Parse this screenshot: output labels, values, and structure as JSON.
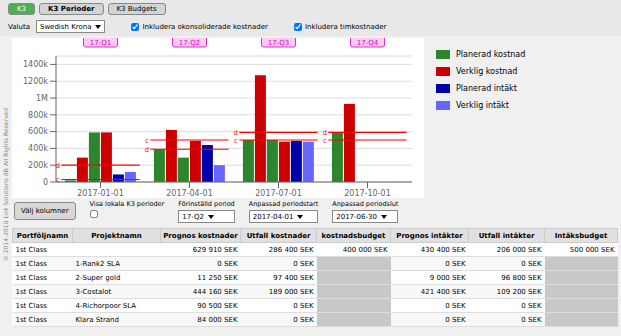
{
  "chart_data": [
    {
      "type": "bar",
      "categories": [
        "2017-01-01",
        "2017-04-01",
        "2017-07-01",
        "2017-10-01"
      ],
      "series": [
        {
          "name": "Planerad kostnad",
          "color": "#2d862d",
          "values": [
            20000,
            390000,
            500000,
            590000
          ]
        },
        {
          "name": "Verklig kostnad",
          "color": "#cc0000",
          "values": [
            290000,
            620000,
            1270000,
            930000
          ]
        },
        {
          "name": "Planerad kostnad",
          "color": "#2d862d",
          "values": [
            590000,
            290000,
            500000,
            0
          ]
        },
        {
          "name": "Verklig kostnad",
          "color": "#cc0000",
          "values": [
            590000,
            490000,
            480000,
            0
          ]
        },
        {
          "name": "Planerad intäkt",
          "color": "#0000aa",
          "values": [
            90000,
            440000,
            490000,
            0
          ]
        },
        {
          "name": "Verklig intäkt",
          "color": "#6666ff",
          "values": [
            120000,
            200000,
            480000,
            0
          ]
        },
        {
          "name": "c",
          "type": "line",
          "color": "red",
          "values": [
            30000,
            500000,
            500000,
            500000
          ]
        },
        {
          "name": "d",
          "type": "line",
          "color": "red",
          "values": [
            200000,
            390000,
            590000,
            590000
          ]
        }
      ],
      "ylim": [
        0,
        1500000
      ],
      "yticks": [
        0,
        {
          "value": 200000,
          "label": "200k"
        },
        {
          "value": 400000,
          "label": "400k"
        },
        {
          "value": 600000,
          "label": "600k"
        },
        {
          "value": 800000,
          "label": "800k"
        },
        {
          "value": 1000000,
          "label": "1M"
        },
        {
          "value": 1200000,
          "label": "1200k"
        },
        {
          "value": 1400000,
          "label": "1400k"
        }
      ],
      "grid": true,
      "legend": "right",
      "annotations": [
        {
          "x": "2017-01-01",
          "text": "17-Q1"
        },
        {
          "x": "2017-04-01",
          "text": "17-Q2"
        },
        {
          "x": "2017-07-01",
          "text": "17-Q3"
        },
        {
          "x": "2017-10-01",
          "text": "17-Q4"
        }
      ]
    },
    {
      "type": "text",
      "annotations": [
        "K3",
        "K3 Perioder",
        "K3 Budgets",
        "Valuta",
        "Swedish Krona",
        "Inkludera okonsoliderade kostnader",
        "Inkludera timkostnader",
        "Välj kolumner",
        "Visa lokala K3 perioder",
        "Förinställd period",
        "17-Q2",
        "Anpassad periodstart",
        "2017-04-01",
        "Anpassad periodslut",
        "2017-06-30",
        "© 2014-2016 Ln4 Solutions AB All Rights Reserved"
      ]
    },
    {
      "type": "table",
      "columns": [
        "Portföljnamn",
        "Projektnamn",
        "Prognos kostnader",
        "Utfall kostnader",
        "kostnadsbudget",
        "Prognos intäkter",
        "Utfall intäkter",
        "Intäksbudget"
      ],
      "rows": [
        [
          "1st Class",
          "",
          "629 910 SEK",
          "286 400 SEK",
          "400 000 SEK",
          "430 400 SEK",
          "206 000 SEK",
          "500 000 SEK"
        ],
        [
          "1st Class",
          "1-Rank2 SLA",
          "0 SEK",
          "0 SEK",
          "",
          "0 SEK",
          "0 SEK",
          ""
        ],
        [
          "1st Class",
          "2-Super gold",
          "11 250 SEK",
          "97 400 SEK",
          "",
          "9 000 SEK",
          "96 800 SEK",
          ""
        ],
        [
          "1st Class",
          "3-Costalot",
          "444 160 SEK",
          "189 000 SEK",
          "",
          "421 400 SEK",
          "109 200 SEK",
          ""
        ],
        [
          "1st Class",
          "4-Richorpoor SLA",
          "90 500 SEK",
          "0 SEK",
          "",
          "0 SEK",
          "0 SEK",
          ""
        ],
        [
          "1st Class",
          "Klara Strand",
          "84 000 SEK",
          "0 SEK",
          "",
          "0 SEK",
          "0 SEK",
          ""
        ]
      ]
    }
  ]
}
